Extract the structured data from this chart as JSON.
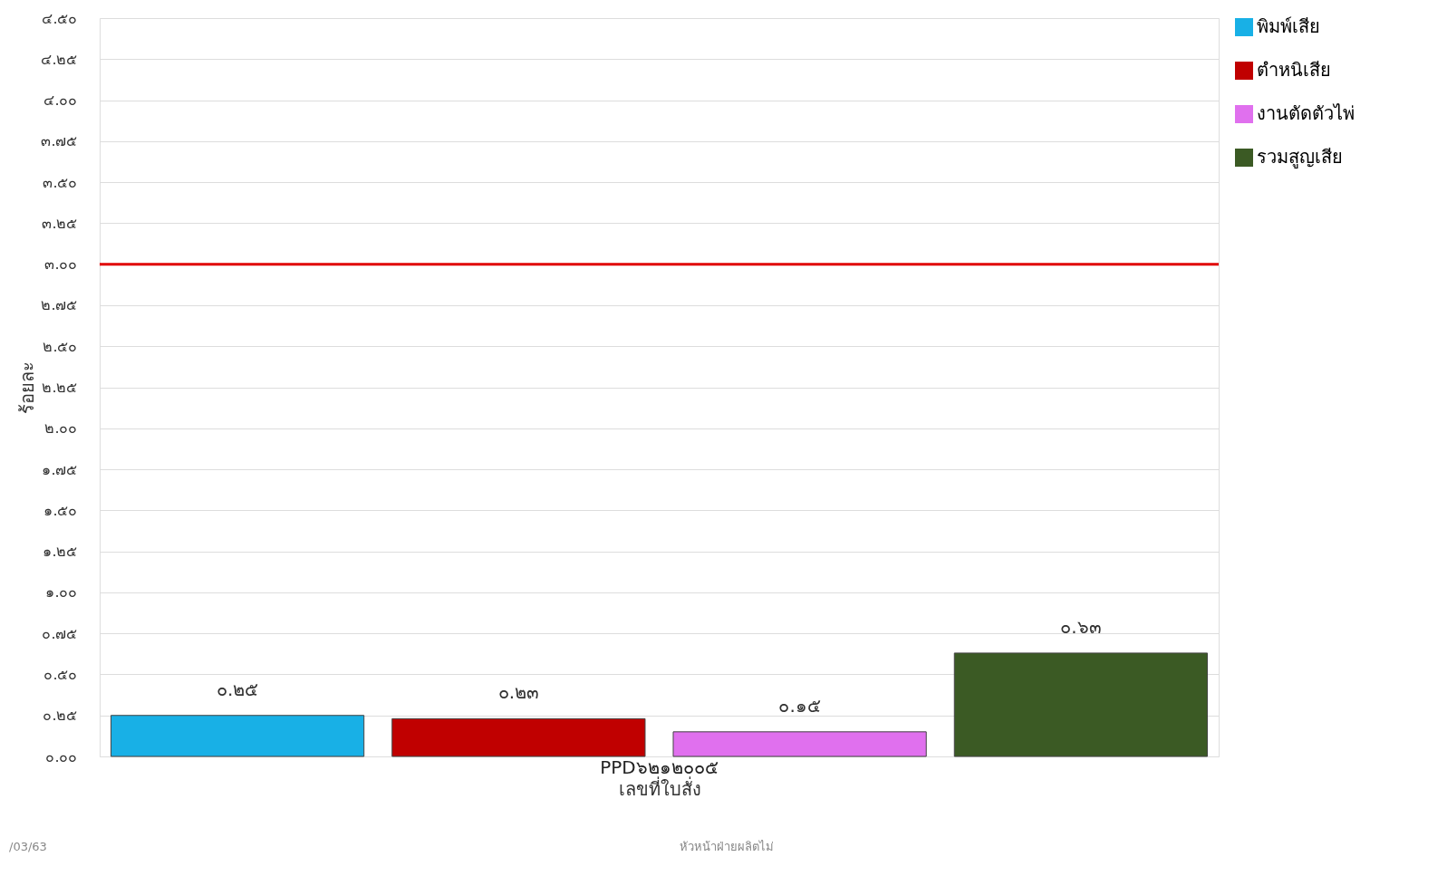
{
  "chart_data": {
    "type": "bar",
    "ylabel": "ร้อยละ",
    "xlabel": "เลขที่ใบสั่ง",
    "categories": [
      "PPD๖๒๑๒๐๐๕"
    ],
    "series": [
      {
        "name": "พิมพ์เสีย",
        "color": "#18b0e6",
        "values": [
          0.25
        ],
        "value_labels": [
          "๐.๒๕"
        ]
      },
      {
        "name": "ตำหนิเสีย",
        "color": "#c00000",
        "values": [
          0.23
        ],
        "value_labels": [
          "๐.๒๓"
        ]
      },
      {
        "name": "งานตัดตัวไพ่",
        "color": "#e070ee",
        "values": [
          0.15
        ],
        "value_labels": [
          "๐.๑๕"
        ]
      },
      {
        "name": "รวมสูญเสีย",
        "color": "#3b5a24",
        "values": [
          0.63
        ],
        "value_labels": [
          "๐.๖๓"
        ]
      }
    ],
    "ylim": [
      0,
      4.5
    ],
    "yticks": [
      {
        "value": 0,
        "label": "๐.๐๐"
      },
      {
        "value": 0.25,
        "label": "๐.๒๕"
      },
      {
        "value": 0.5,
        "label": "๐.๕๐"
      },
      {
        "value": 0.75,
        "label": "๐.๗๕"
      },
      {
        "value": 1,
        "label": "๑.๐๐"
      },
      {
        "value": 1.25,
        "label": "๑.๒๕"
      },
      {
        "value": 1.5,
        "label": "๑.๕๐"
      },
      {
        "value": 1.75,
        "label": "๑.๗๕"
      },
      {
        "value": 2,
        "label": "๒.๐๐"
      },
      {
        "value": 2.25,
        "label": "๒.๒๕"
      },
      {
        "value": 2.5,
        "label": "๒.๕๐"
      },
      {
        "value": 2.75,
        "label": "๒.๗๕"
      },
      {
        "value": 3,
        "label": "๓.๐๐"
      },
      {
        "value": 3.25,
        "label": "๓.๒๕"
      },
      {
        "value": 3.5,
        "label": "๓.๕๐"
      },
      {
        "value": 3.75,
        "label": "๓.๗๕"
      },
      {
        "value": 4,
        "label": "๔.๐๐"
      },
      {
        "value": 4.25,
        "label": "๔.๒๕"
      },
      {
        "value": 4.5,
        "label": "๔.๕๐"
      }
    ],
    "ref_lines": [
      {
        "axis": "y",
        "value": 3,
        "color": "#e00000"
      }
    ],
    "grid": "y",
    "legend": "right",
    "annotations": [
      "/03/63",
      "หัวหน้าฝ่ายผลิตไม่"
    ]
  }
}
